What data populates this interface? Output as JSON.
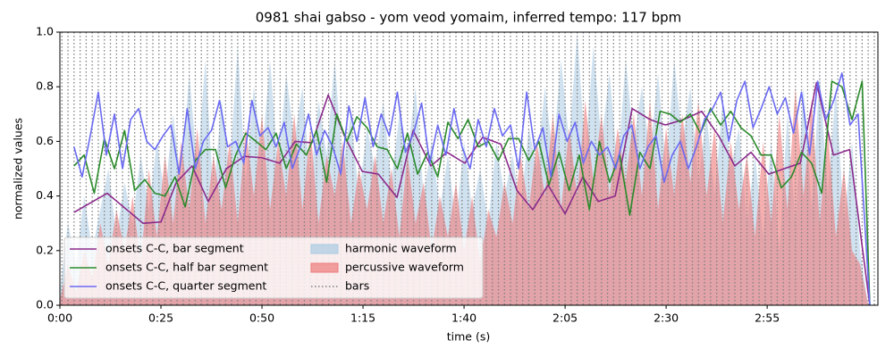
{
  "chart_data": {
    "type": "line",
    "title": "0981 shai gabso - yom veod yomaim, inferred tempo: 117 bpm",
    "xlabel": "time (s)",
    "ylabel": "normalized values",
    "xlim": [
      0,
      202.4
    ],
    "ylim": [
      0,
      1
    ],
    "xticks": [
      {
        "value": 0,
        "label": "0:00"
      },
      {
        "value": 25,
        "label": "0:25"
      },
      {
        "value": 50,
        "label": "0:50"
      },
      {
        "value": 75,
        "label": "1:15"
      },
      {
        "value": 100,
        "label": "1:40"
      },
      {
        "value": 125,
        "label": "2:05"
      },
      {
        "value": 150,
        "label": "2:30"
      },
      {
        "value": 175,
        "label": "2:55"
      }
    ],
    "yticks": [
      {
        "value": 0,
        "label": "0.0"
      },
      {
        "value": 0.2,
        "label": "0.2"
      },
      {
        "value": 0.4,
        "label": "0.4"
      },
      {
        "value": 0.6,
        "label": "0.6"
      },
      {
        "value": 0.8,
        "label": "0.8"
      },
      {
        "value": 1,
        "label": "1.0"
      }
    ],
    "areas_x": [
      0,
      2,
      4,
      6,
      8,
      10,
      12,
      14,
      16,
      18,
      20,
      22,
      24,
      26,
      28,
      30,
      32,
      34,
      36,
      38,
      40,
      42,
      44,
      46,
      48,
      50,
      52,
      54,
      56,
      58,
      60,
      62,
      64,
      66,
      68,
      70,
      72,
      74,
      76,
      78,
      80,
      82,
      84,
      86,
      88,
      90,
      92,
      94,
      96,
      98,
      100,
      102,
      104,
      106,
      108,
      110,
      112,
      114,
      116,
      118,
      120,
      122,
      124,
      126,
      128,
      130,
      132,
      134,
      136,
      138,
      140,
      142,
      144,
      146,
      148,
      150,
      152,
      154,
      156,
      158,
      160,
      162,
      164,
      166,
      168,
      170,
      172,
      174,
      176,
      178,
      180,
      182,
      184,
      186,
      188,
      190,
      192,
      194,
      196,
      198,
      200
    ],
    "areas": [
      {
        "name": "harmonic waveform",
        "color": "#a9cbe3",
        "values": [
          0.05,
          0.3,
          0.15,
          0.4,
          0.2,
          0.35,
          0.5,
          0.25,
          0.45,
          0.3,
          0.55,
          0.35,
          0.6,
          0.4,
          0.7,
          0.45,
          0.85,
          0.5,
          0.9,
          0.4,
          0.75,
          0.5,
          0.95,
          0.45,
          0.8,
          0.55,
          0.9,
          0.5,
          0.85,
          0.6,
          0.8,
          0.45,
          0.75,
          0.55,
          0.9,
          0.5,
          0.7,
          0.4,
          0.65,
          0.5,
          0.75,
          0.45,
          0.7,
          0.55,
          0.8,
          0.4,
          0.6,
          0.35,
          0.55,
          0.3,
          0.6,
          0.35,
          0.5,
          0.3,
          0.6,
          0.4,
          0.55,
          0.35,
          0.65,
          0.5,
          0.8,
          0.55,
          0.9,
          0.6,
          1.0,
          0.55,
          0.95,
          0.6,
          0.85,
          0.5,
          0.9,
          0.6,
          0.8,
          0.55,
          0.85,
          0.5,
          0.9,
          0.6,
          0.8,
          0.45,
          0.7,
          0.4,
          0.75,
          0.5,
          0.65,
          0.3,
          0.55,
          0.25,
          0.6,
          0.2,
          0.7,
          0.3,
          0.8,
          0.35,
          0.85,
          0.4,
          0.8,
          0.3,
          0.6,
          0.2,
          0.0
        ]
      },
      {
        "name": "percussive waveform",
        "color": "#ee7a7a",
        "values": [
          0.02,
          0.15,
          0.05,
          0.2,
          0.1,
          0.3,
          0.15,
          0.35,
          0.2,
          0.4,
          0.15,
          0.5,
          0.25,
          0.55,
          0.3,
          0.6,
          0.35,
          0.65,
          0.3,
          0.55,
          0.35,
          0.6,
          0.3,
          0.65,
          0.4,
          0.7,
          0.35,
          0.6,
          0.4,
          0.7,
          0.35,
          0.65,
          0.3,
          0.55,
          0.4,
          0.6,
          0.3,
          0.5,
          0.35,
          0.55,
          0.3,
          0.5,
          0.25,
          0.55,
          0.3,
          0.45,
          0.2,
          0.4,
          0.25,
          0.45,
          0.2,
          0.4,
          0.15,
          0.35,
          0.25,
          0.45,
          0.3,
          0.55,
          0.35,
          0.6,
          0.4,
          0.7,
          0.35,
          0.65,
          0.4,
          0.75,
          0.45,
          0.7,
          0.4,
          0.65,
          0.45,
          0.7,
          0.4,
          0.75,
          0.35,
          0.65,
          0.4,
          0.7,
          0.45,
          0.75,
          0.4,
          0.65,
          0.3,
          0.6,
          0.35,
          0.55,
          0.25,
          0.6,
          0.3,
          0.7,
          0.35,
          0.8,
          0.4,
          0.75,
          0.3,
          0.65,
          0.25,
          0.5,
          0.2,
          0.15,
          0.0
        ]
      }
    ],
    "series": [
      {
        "name": "onsets C-C, bar segment",
        "color": "#8b2a8b",
        "x": [
          3.5,
          11.7,
          20.6,
          25,
          28.8,
          32.7,
          36.7,
          41.2,
          45.6,
          50,
          54.4,
          58.2,
          62.4,
          66.4,
          70.4,
          74.8,
          78.8,
          83.4,
          87.4,
          91.8,
          95.8,
          100.2,
          104.6,
          109.1,
          113.1,
          117,
          120.8,
          125,
          129.4,
          133.2,
          137.4,
          141.6,
          146,
          149.8,
          154.4,
          158.8,
          163,
          167,
          171,
          175.4,
          179.2,
          183.2,
          187.2,
          191.4,
          195.4,
          200.4
        ],
        "values": [
          0.34,
          0.41,
          0.3,
          0.305,
          0.45,
          0.51,
          0.38,
          0.5,
          0.545,
          0.54,
          0.52,
          0.6,
          0.595,
          0.77,
          0.62,
          0.49,
          0.48,
          0.395,
          0.64,
          0.51,
          0.56,
          0.52,
          0.615,
          0.59,
          0.42,
          0.35,
          0.44,
          0.335,
          0.47,
          0.38,
          0.4,
          0.72,
          0.68,
          0.66,
          0.68,
          0.71,
          0.62,
          0.51,
          0.56,
          0.48,
          0.5,
          0.52,
          0.815,
          0.55,
          0.57,
          0.0
        ]
      },
      {
        "name": "onsets C-C, half bar segment",
        "color": "#2a8a2a",
        "x": [
          3.5,
          6,
          8.5,
          11,
          13.5,
          16,
          18.5,
          21,
          23.5,
          26,
          28.5,
          31,
          33.5,
          36,
          38.5,
          41,
          43.5,
          46,
          48.5,
          51,
          53.5,
          56,
          58.5,
          61,
          63.5,
          66,
          68.5,
          71,
          73.5,
          76,
          78.5,
          81,
          83.5,
          86,
          88.5,
          91,
          93.5,
          96,
          98.5,
          101,
          103.5,
          106,
          108.5,
          111,
          113.5,
          116,
          118.5,
          121,
          123.5,
          126,
          128.5,
          131,
          133.5,
          136,
          138.5,
          141,
          143.5,
          146,
          148.5,
          151,
          153.5,
          156,
          158.5,
          161,
          163.5,
          166,
          168.5,
          171,
          173.5,
          176,
          178.5,
          181,
          183.5,
          186,
          188.5,
          191,
          193.5,
          196,
          198.5,
          200.4
        ],
        "values": [
          0.51,
          0.55,
          0.41,
          0.61,
          0.5,
          0.64,
          0.42,
          0.46,
          0.41,
          0.4,
          0.47,
          0.36,
          0.53,
          0.57,
          0.57,
          0.43,
          0.55,
          0.63,
          0.6,
          0.57,
          0.63,
          0.5,
          0.59,
          0.55,
          0.64,
          0.45,
          0.7,
          0.6,
          0.69,
          0.65,
          0.58,
          0.57,
          0.5,
          0.63,
          0.48,
          0.56,
          0.47,
          0.67,
          0.61,
          0.68,
          0.58,
          0.6,
          0.53,
          0.61,
          0.61,
          0.53,
          0.6,
          0.44,
          0.56,
          0.42,
          0.55,
          0.35,
          0.6,
          0.45,
          0.55,
          0.33,
          0.56,
          0.5,
          0.71,
          0.7,
          0.67,
          0.7,
          0.63,
          0.72,
          0.66,
          0.71,
          0.65,
          0.62,
          0.55,
          0.55,
          0.43,
          0.47,
          0.56,
          0.52,
          0.41,
          0.82,
          0.8,
          0.68,
          0.82,
          0.0
        ]
      },
      {
        "name": "onsets C-C, quarter segment",
        "color": "#6a6af2",
        "x": [
          3.5,
          5.5,
          7.5,
          9.5,
          11.5,
          13.5,
          15.5,
          17.5,
          19.5,
          21.5,
          23.5,
          25.5,
          27.5,
          29.5,
          31.5,
          33.5,
          35.5,
          37.5,
          39.5,
          41.5,
          43.5,
          45.5,
          47.5,
          49.5,
          51.5,
          53.5,
          55.5,
          57.5,
          59.5,
          61.5,
          63.5,
          65.5,
          67.5,
          69.5,
          71.5,
          73.5,
          75.5,
          77.5,
          79.5,
          81.5,
          83.5,
          85.5,
          87.5,
          89.5,
          91.5,
          93.5,
          95.5,
          97.5,
          99.5,
          101.5,
          103.5,
          105.5,
          107.5,
          109.5,
          111.5,
          113.5,
          115.5,
          117.5,
          119.5,
          121.5,
          123.5,
          125.5,
          127.5,
          129.5,
          131.5,
          133.5,
          135.5,
          137.5,
          139.5,
          141.5,
          143.5,
          145.5,
          147.5,
          149.5,
          151.5,
          153.5,
          155.5,
          157.5,
          159.5,
          161.5,
          163.5,
          165.5,
          167.5,
          169.5,
          171.5,
          173.5,
          175.5,
          177.5,
          179.5,
          181.5,
          183.5,
          185.5,
          187.5,
          189.5,
          191.5,
          193.5,
          195.5,
          197.5,
          200.4
        ],
        "values": [
          0.58,
          0.47,
          0.62,
          0.78,
          0.55,
          0.7,
          0.5,
          0.68,
          0.72,
          0.6,
          0.57,
          0.62,
          0.66,
          0.48,
          0.72,
          0.5,
          0.6,
          0.64,
          0.75,
          0.58,
          0.6,
          0.52,
          0.75,
          0.62,
          0.65,
          0.58,
          0.67,
          0.5,
          0.58,
          0.7,
          0.55,
          0.64,
          0.58,
          0.48,
          0.73,
          0.6,
          0.76,
          0.58,
          0.7,
          0.62,
          0.78,
          0.56,
          0.63,
          0.74,
          0.52,
          0.66,
          0.55,
          0.72,
          0.58,
          0.5,
          0.68,
          0.58,
          0.72,
          0.62,
          0.66,
          0.5,
          0.78,
          0.57,
          0.65,
          0.47,
          0.7,
          0.6,
          0.67,
          0.52,
          0.6,
          0.55,
          0.58,
          0.5,
          0.62,
          0.66,
          0.5,
          0.58,
          0.62,
          0.45,
          0.55,
          0.6,
          0.5,
          0.58,
          0.68,
          0.72,
          0.78,
          0.6,
          0.75,
          0.82,
          0.65,
          0.72,
          0.8,
          0.7,
          0.76,
          0.63,
          0.78,
          0.55,
          0.82,
          0.68,
          0.75,
          0.85,
          0.66,
          0.7,
          0.0
        ]
      }
    ],
    "bars": {
      "name": "bars",
      "color": "#808080",
      "x": [
        0.5,
        2,
        3.5,
        5,
        6.5,
        8,
        9.5,
        11,
        12.5,
        14,
        15.5,
        17,
        18.5,
        20,
        21.5,
        23,
        24.5,
        26,
        27.5,
        29,
        30.5,
        32,
        33.5,
        35,
        36.5,
        38,
        39.5,
        41,
        42.5,
        44,
        45.5,
        47,
        48.5,
        50,
        51.5,
        53,
        54.5,
        56,
        57.5,
        59,
        60.5,
        62,
        63.5,
        65,
        66.5,
        68,
        69.5,
        71,
        72.5,
        74,
        75.5,
        77,
        78.5,
        80,
        81.5,
        83,
        84.5,
        86,
        87.5,
        89,
        90.5,
        92,
        93.5,
        95,
        96.5,
        98,
        99.5,
        101,
        102.5,
        104,
        105.5,
        107,
        108.5,
        110,
        111.5,
        113,
        114.5,
        116,
        117.5,
        119,
        120.5,
        122,
        123.5,
        125,
        126.5,
        128,
        129.5,
        131,
        132.5,
        134,
        135.5,
        137,
        138.5,
        140,
        141.5,
        143,
        144.5,
        146,
        147.5,
        149,
        150.5,
        152,
        153.5,
        155,
        156.5,
        158,
        159.5,
        161,
        162.5,
        164,
        165.5,
        167,
        168.5,
        170,
        171.5,
        173,
        174.5,
        176,
        177.5,
        179,
        180.5,
        182,
        183.5,
        185,
        186.5,
        188,
        189.5,
        191,
        192.5,
        194,
        195.5,
        197,
        198.5,
        200,
        201.5
      ]
    }
  }
}
